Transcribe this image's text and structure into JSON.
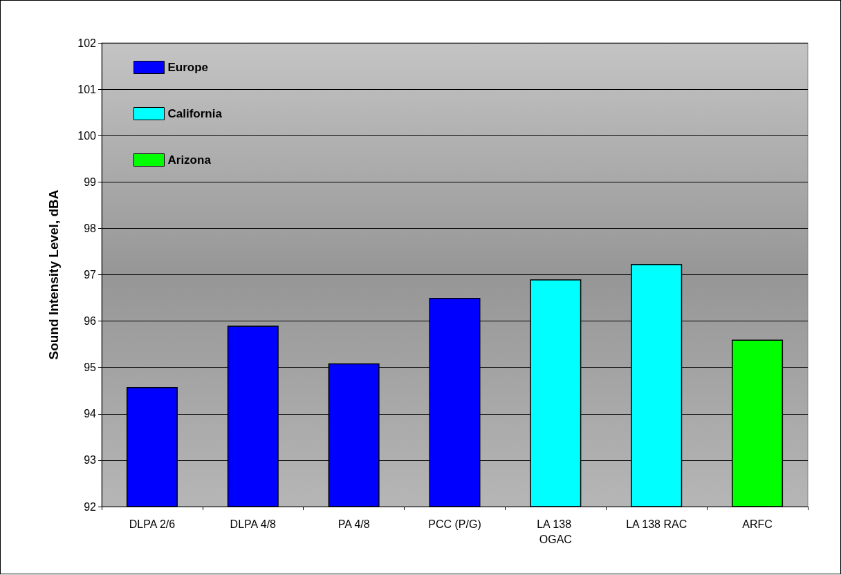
{
  "chart_data": {
    "type": "bar",
    "ylabel": "Sound Intensity Level, dBA",
    "categories": [
      "DLPA 2/6",
      "DLPA 4/8",
      "PA 4/8",
      "PCC (P/G)",
      "LA 138 OGAC",
      "LA 138 RAC",
      "ARFC"
    ],
    "series": [
      {
        "name": "Europe",
        "color": "#0000ff",
        "values": [
          94.58,
          95.9,
          95.09,
          96.5,
          null,
          null,
          null
        ]
      },
      {
        "name": "California",
        "color": "#00ffff",
        "values": [
          null,
          null,
          null,
          null,
          96.9,
          97.23,
          null
        ]
      },
      {
        "name": "Arizona",
        "color": "#00ff00",
        "values": [
          null,
          null,
          null,
          null,
          null,
          null,
          95.6
        ]
      }
    ],
    "ylim": [
      92,
      102
    ],
    "yticks": [
      92,
      93,
      94,
      95,
      96,
      97,
      98,
      99,
      100,
      101,
      102
    ],
    "grid": "y",
    "legend": "top left"
  }
}
